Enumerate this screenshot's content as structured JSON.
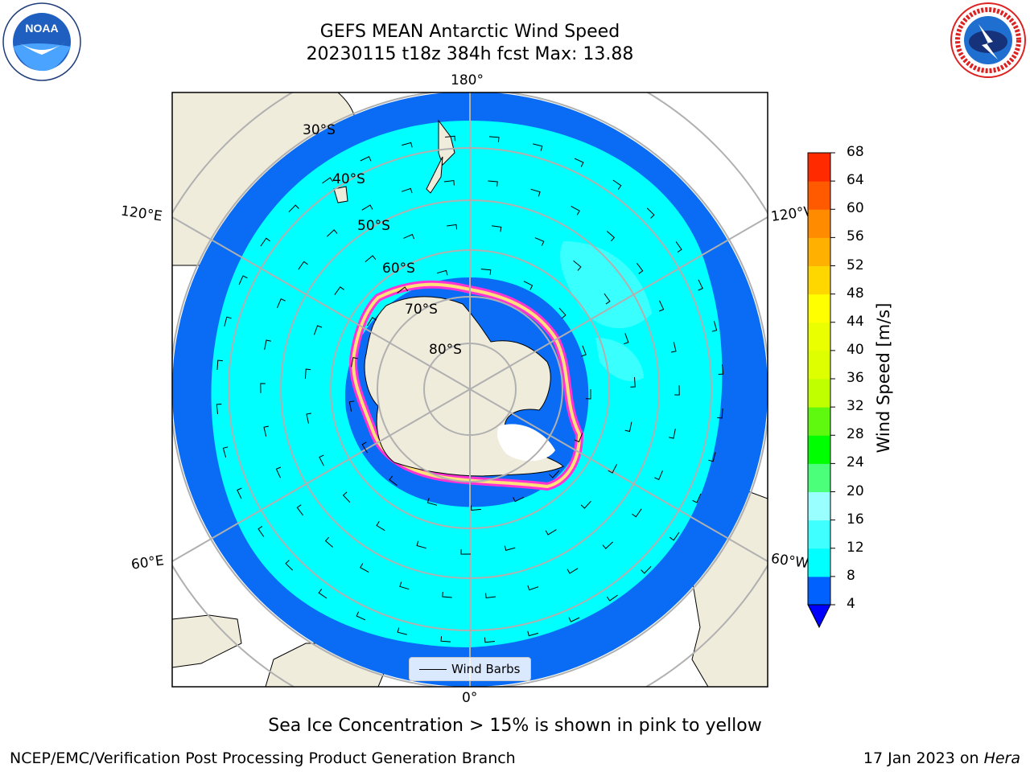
{
  "header": {
    "title_line1": "GEFS MEAN Antarctic Wind Speed",
    "title_line2": "20230115 t18z 384h fcst   Max: 13.88"
  },
  "logos": {
    "left_logo_text": "NOAA",
    "right_logo_text": "NATIONAL WEATHER SERVICE"
  },
  "map": {
    "meridian_labels": {
      "top": "180°",
      "bottom": "0°",
      "left_upper": "120°E",
      "left_lower": "60°E",
      "right_upper": "120°W",
      "right_lower": "60°W"
    },
    "parallel_labels": [
      "30°S",
      "40°S",
      "50°S",
      "60°S",
      "70°S",
      "80°S"
    ],
    "legend_label": "Wind Barbs"
  },
  "colorbar": {
    "label": "Wind Speed [m/s]",
    "ticks": [
      "4",
      "8",
      "12",
      "16",
      "20",
      "24",
      "28",
      "32",
      "36",
      "40",
      "44",
      "48",
      "52",
      "56",
      "60",
      "64",
      "68"
    ],
    "colors": [
      "#0061ff",
      "#00ffff",
      "#40ffff",
      "#99ffff",
      "#4cff7a",
      "#00ff00",
      "#5ff80f",
      "#bfff00",
      "#ddff00",
      "#eaff00",
      "#ffff00",
      "#ffd700",
      "#ffb000",
      "#ff8c00",
      "#ff5a00",
      "#ff2a00",
      "#ff0000"
    ],
    "extend_color": "#0000ff"
  },
  "caption": "Sea Ice Concentration > 15% is shown in pink to yellow",
  "footer": {
    "left": "NCEP/EMC/Verification Post Processing Product Generation Branch",
    "right_prefix": "17 Jan 2023 on ",
    "right_italic": "Hera"
  }
}
